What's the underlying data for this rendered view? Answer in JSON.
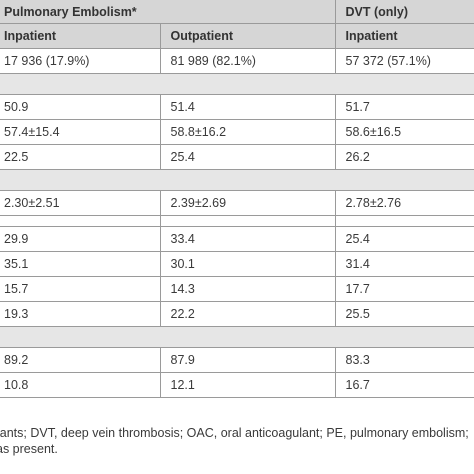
{
  "header": {
    "group_pe": "Pulmonary Embolism*",
    "group_dvt": "DVT (only)",
    "col_pe_inpatient": "Inpatient",
    "col_pe_outpatient": "Outpatient",
    "col_dvt_inpatient": "Inpatient"
  },
  "rows": [
    [
      "17 936 (17.9%)",
      "81 989 (82.1%)",
      "57 372 (57.1%)"
    ],
    [
      "50.9",
      "51.4",
      "51.7"
    ],
    [
      "57.4±15.4",
      "58.8±16.2",
      "58.6±16.5"
    ],
    [
      "22.5",
      "25.4",
      "26.2"
    ],
    [
      "2.30±2.51",
      "2.39±2.69",
      "2.78±2.76"
    ],
    [
      "29.9",
      "33.4",
      "25.4"
    ],
    [
      "35.1",
      "30.1",
      "31.4"
    ],
    [
      "15.7",
      "14.3",
      "17.7"
    ],
    [
      "19.3",
      "22.2",
      "25.5"
    ],
    [
      "89.2",
      "87.9",
      "83.3"
    ],
    [
      "10.8",
      "12.1",
      "16.7"
    ]
  ],
  "footnote": {
    "line1": "lants; DVT, deep vein thrombosis; OAC, oral anticoagulant; PE, pulmonary embolism;",
    "line2": "as present."
  }
}
